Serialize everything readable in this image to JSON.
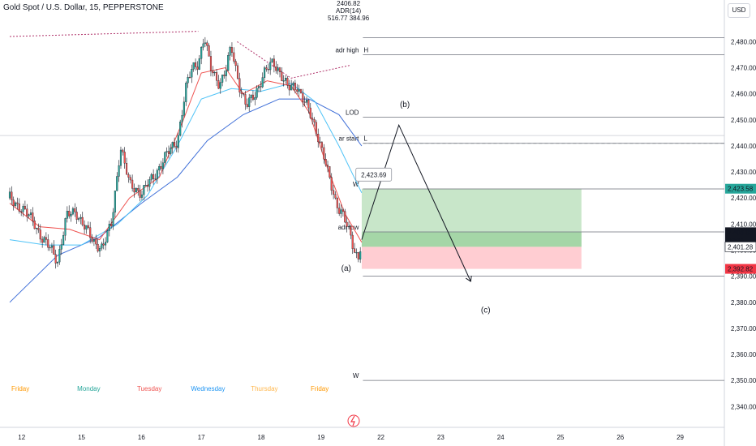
{
  "header": {
    "title": "Gold Spot / U.S. Dollar, 15, PEPPERSTONE",
    "currency": "USD",
    "indicator_lines": [
      "2406.82",
      "ADR(14)",
      "516.77 384.96"
    ]
  },
  "colors": {
    "up": "#26a69a",
    "down": "#ef5350",
    "ema_fast": "#ef5350",
    "ema_mid": "#4fc3f7",
    "ema_slow": "#3f6fd8",
    "tp_zone": "#c8e6c9",
    "sl_zone": "#ffcdd2",
    "entry_fill": "#a5d6a7",
    "tp_badge": "#26a69a",
    "price_badge": "#131722",
    "sl_badge": "#f23645",
    "dotted": "#b0336a"
  },
  "chart_data": {
    "type": "candlestick",
    "title": "Gold Spot / U.S. Dollar, 15, PEPPERSTONE",
    "ylim": [
      2332,
      2496
    ],
    "y_ticks": [
      2340,
      2350,
      2360,
      2370,
      2380,
      2390,
      2400,
      2410,
      2420,
      2430,
      2440,
      2450,
      2460,
      2470,
      2480
    ],
    "y_tick_labels": [
      "2,340.00",
      "2,350.00",
      "2,360.00",
      "2,370.00",
      "2,380.00",
      "2,390.00",
      "2,400.00",
      "2,410.00",
      "2,420.00",
      "2,430.00",
      "2,440.00",
      "2,450.00",
      "2,460.00",
      "2,470.00",
      "2,480.00"
    ],
    "x_ticks": [
      "12",
      "15",
      "16",
      "17",
      "18",
      "19",
      "22",
      "23",
      "24",
      "25",
      "26",
      "29"
    ],
    "x_tick_pos": [
      0.2,
      1.2,
      2.2,
      3.2,
      4.2,
      5.2,
      6.2,
      7.2,
      8.2,
      9.2,
      10.2,
      11.2
    ],
    "days": [
      {
        "label": "Friday",
        "x": 0.0,
        "color": "#ff9800"
      },
      {
        "label": "Monday",
        "x": 1.1,
        "color": "#26a69a"
      },
      {
        "label": "Tuesday",
        "x": 2.1,
        "color": "#ef5350"
      },
      {
        "label": "Wednesday",
        "x": 3.0,
        "color": "#2196f3"
      },
      {
        "label": "Thursday",
        "x": 4.0,
        "color": "#ffb74d"
      },
      {
        "label": "Friday",
        "x": 5.0,
        "color": "#ff9800"
      }
    ],
    "close_path": [
      [
        0.0,
        2420
      ],
      [
        0.2,
        2416
      ],
      [
        0.4,
        2411
      ],
      [
        0.55,
        2404
      ],
      [
        0.7,
        2400
      ],
      [
        0.8,
        2396
      ],
      [
        0.95,
        2413
      ],
      [
        1.1,
        2415
      ],
      [
        1.25,
        2409
      ],
      [
        1.4,
        2403
      ],
      [
        1.55,
        2401
      ],
      [
        1.7,
        2410
      ],
      [
        1.85,
        2440
      ],
      [
        2.0,
        2425
      ],
      [
        2.2,
        2422
      ],
      [
        2.4,
        2428
      ],
      [
        2.6,
        2436
      ],
      [
        2.8,
        2442
      ],
      [
        2.95,
        2463
      ],
      [
        3.05,
        2470
      ],
      [
        3.15,
        2472
      ],
      [
        3.25,
        2482
      ],
      [
        3.35,
        2470
      ],
      [
        3.5,
        2464
      ],
      [
        3.6,
        2468
      ],
      [
        3.7,
        2478
      ],
      [
        3.85,
        2462
      ],
      [
        3.95,
        2455
      ],
      [
        4.1,
        2460
      ],
      [
        4.25,
        2468
      ],
      [
        4.4,
        2472
      ],
      [
        4.5,
        2469
      ],
      [
        4.65,
        2462
      ],
      [
        4.8,
        2463
      ],
      [
        4.95,
        2456
      ],
      [
        5.05,
        2450
      ],
      [
        5.15,
        2444
      ],
      [
        5.25,
        2436
      ],
      [
        5.35,
        2426
      ],
      [
        5.45,
        2418
      ],
      [
        5.55,
        2415
      ],
      [
        5.65,
        2408
      ],
      [
        5.75,
        2400
      ],
      [
        5.82,
        2397
      ],
      [
        5.88,
        2405
      ]
    ],
    "ema_fast": [
      [
        0.0,
        2418
      ],
      [
        0.5,
        2409
      ],
      [
        1.0,
        2408
      ],
      [
        1.5,
        2404
      ],
      [
        2.0,
        2420
      ],
      [
        2.5,
        2428
      ],
      [
        2.9,
        2450
      ],
      [
        3.2,
        2468
      ],
      [
        3.6,
        2470
      ],
      [
        3.9,
        2460
      ],
      [
        4.3,
        2465
      ],
      [
        4.7,
        2463
      ],
      [
        5.0,
        2453
      ],
      [
        5.3,
        2432
      ],
      [
        5.6,
        2414
      ],
      [
        5.88,
        2403
      ]
    ],
    "ema_mid": [
      [
        0.0,
        2404
      ],
      [
        0.6,
        2402
      ],
      [
        1.2,
        2402
      ],
      [
        1.8,
        2410
      ],
      [
        2.3,
        2421
      ],
      [
        2.8,
        2440
      ],
      [
        3.2,
        2458
      ],
      [
        3.7,
        2462
      ],
      [
        4.2,
        2461
      ],
      [
        4.7,
        2464
      ],
      [
        5.1,
        2457
      ],
      [
        5.5,
        2440
      ],
      [
        5.88,
        2422
      ]
    ],
    "ema_slow": [
      [
        0.0,
        2380
      ],
      [
        0.8,
        2398
      ],
      [
        1.5,
        2405
      ],
      [
        2.2,
        2418
      ],
      [
        2.8,
        2428
      ],
      [
        3.3,
        2442
      ],
      [
        3.9,
        2452
      ],
      [
        4.5,
        2458
      ],
      [
        5.0,
        2458
      ],
      [
        5.5,
        2452
      ],
      [
        5.88,
        2440
      ]
    ],
    "wave_path": [
      [
        5.88,
        2404
      ],
      [
        6.5,
        2448
      ],
      [
        7.7,
        2388
      ]
    ],
    "wave_labels": [
      {
        "text": "(b)",
        "x": 6.6,
        "y": 2455
      },
      {
        "text": "(a)",
        "x": 5.62,
        "y": 2392
      },
      {
        "text": "(c)",
        "x": 7.95,
        "y": 2376
      }
    ],
    "levels": [
      {
        "label": "adr high",
        "value": 2475,
        "x0": 5.9,
        "tag": "H"
      },
      {
        "label": "LOD",
        "value": 2451,
        "x0": 5.9,
        "tag": ""
      },
      {
        "label": "ar start",
        "value": 2441,
        "x0": 5.9,
        "tag": "L"
      },
      {
        "label": "W",
        "value": 2423.5,
        "x0": 5.9,
        "tag": ""
      },
      {
        "label": "adr low",
        "value": 2407,
        "x0": 5.9,
        "tag": ""
      },
      {
        "label": "",
        "value": 2390,
        "x0": 5.9,
        "tag": ""
      },
      {
        "label": "W",
        "value": 2350,
        "x0": 5.9,
        "tag": ""
      },
      {
        "label": "",
        "value": 2481.5,
        "x0": 5.9,
        "tag": ""
      }
    ],
    "position": {
      "entry": 2401.28,
      "current": 2406.88,
      "tp": 2423.58,
      "sl": 2392.82,
      "x0": 5.88,
      "x1": 9.55
    },
    "price_tags": [
      {
        "text": "2,423.58",
        "value": 2423.58,
        "kind": "tp"
      },
      {
        "text": "2,406.88",
        "value": 2406.88,
        "kind": "price",
        "sub": "03:35"
      },
      {
        "text": "2,401.28",
        "value": 2401.28,
        "kind": "entry"
      },
      {
        "text": "2,392.82",
        "value": 2392.82,
        "kind": "sl"
      }
    ],
    "callout": {
      "text": "2,423.69",
      "x": 6.08,
      "y": 2429
    },
    "dotted_line": [
      [
        0.0,
        2482
      ],
      [
        3.15,
        2484
      ]
    ],
    "dotted_wedge": [
      [
        3.8,
        2480
      ],
      [
        4.7,
        2466
      ],
      [
        5.7,
        2471
      ]
    ]
  }
}
